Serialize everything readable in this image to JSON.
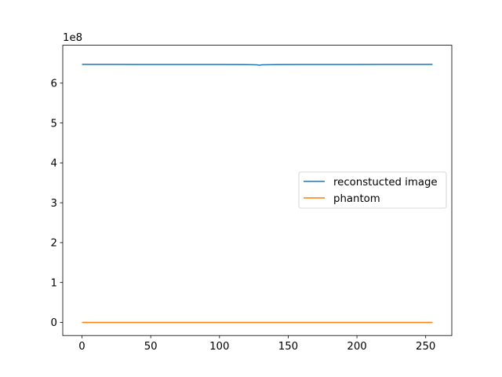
{
  "chart_data": {
    "type": "line",
    "title": "",
    "xlabel": "",
    "ylabel": "",
    "xlim": [
      -14,
      269
    ],
    "ylim": [
      -0.33,
      6.95
    ],
    "y_scale_label": "1e8",
    "x_ticks": [
      0,
      50,
      100,
      150,
      200,
      250
    ],
    "x_tick_labels": [
      "0",
      "50",
      "100",
      "150",
      "200",
      "250"
    ],
    "y_ticks": [
      0,
      1,
      2,
      3,
      4,
      5,
      6
    ],
    "y_tick_labels": [
      "0",
      "1",
      "2",
      "3",
      "4",
      "5",
      "6"
    ],
    "grid": false,
    "legend_position": "center-right",
    "series": [
      {
        "name": "reconstucted image",
        "color": "#1f77b4",
        "x": [
          0,
          20,
          40,
          60,
          80,
          100,
          120,
          127,
          129,
          131,
          140,
          160,
          180,
          200,
          220,
          240,
          255
        ],
        "values": [
          6.47,
          6.47,
          6.468,
          6.468,
          6.467,
          6.467,
          6.465,
          6.46,
          6.45,
          6.46,
          6.465,
          6.467,
          6.468,
          6.468,
          6.47,
          6.47,
          6.47
        ]
      },
      {
        "name": "phantom",
        "color": "#ff7f0e",
        "x": [
          0,
          255
        ],
        "values": [
          0.0,
          0.0
        ]
      }
    ]
  }
}
